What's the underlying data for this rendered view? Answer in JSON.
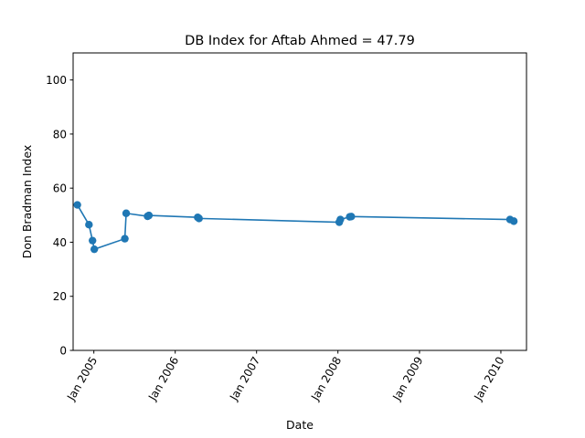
{
  "chart_data": {
    "type": "line",
    "title": "DB Index for Aftab Ahmed = 47.79",
    "xlabel": "Date",
    "ylabel": "Don Bradman Index",
    "ylim": [
      0,
      110
    ],
    "xlim": [
      "2004-09-30",
      "2010-04-26"
    ],
    "yticks": [
      0,
      20,
      40,
      60,
      80,
      100
    ],
    "xticks": [
      {
        "date": "2005-01-01",
        "label": "Jan 2005"
      },
      {
        "date": "2006-01-01",
        "label": "Jan 2006"
      },
      {
        "date": "2007-01-01",
        "label": "Jan 2007"
      },
      {
        "date": "2008-01-01",
        "label": "Jan 2008"
      },
      {
        "date": "2009-01-01",
        "label": "Jan 2009"
      },
      {
        "date": "2010-01-01",
        "label": "Jan 2010"
      }
    ],
    "grid": false,
    "markers": true,
    "colors": {
      "series": "#1f77b4"
    },
    "series": [
      {
        "x": [
          "2004-10-19",
          "2004-12-10",
          "2004-12-26",
          "2005-01-03",
          "2005-05-20",
          "2005-05-26",
          "2005-08-30",
          "2005-09-05",
          "2006-04-12",
          "2006-04-18",
          "2008-01-07",
          "2008-01-12",
          "2008-02-23",
          "2008-03-01",
          "2010-02-11",
          "2010-02-28"
        ],
        "y": [
          53.8,
          46.5,
          40.6,
          37.4,
          41.3,
          50.7,
          49.6,
          49.9,
          49.2,
          48.8,
          47.4,
          48.4,
          49.4,
          49.5,
          48.4,
          47.79
        ]
      }
    ]
  }
}
